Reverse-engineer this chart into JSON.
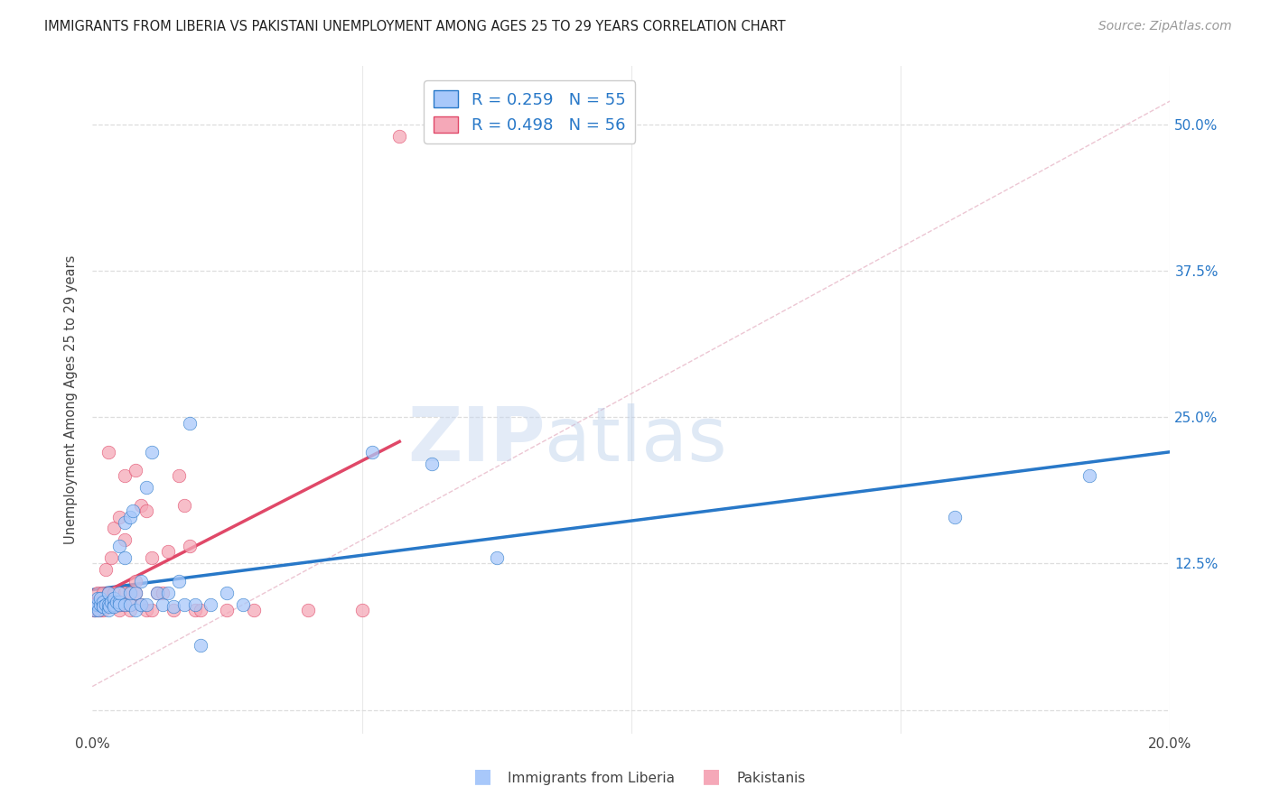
{
  "title": "IMMIGRANTS FROM LIBERIA VS PAKISTANI UNEMPLOYMENT AMONG AGES 25 TO 29 YEARS CORRELATION CHART",
  "source": "Source: ZipAtlas.com",
  "ylabel": "Unemployment Among Ages 25 to 29 years",
  "xlim": [
    0.0,
    0.2
  ],
  "ylim": [
    -0.02,
    0.55
  ],
  "xticks": [
    0.0,
    0.05,
    0.1,
    0.15,
    0.2
  ],
  "xticklabels": [
    "0.0%",
    "",
    "",
    "",
    "20.0%"
  ],
  "yticks": [
    0.0,
    0.125,
    0.25,
    0.375,
    0.5
  ],
  "yticklabels": [
    "",
    "12.5%",
    "25.0%",
    "37.5%",
    "50.0%"
  ],
  "liberia_R": 0.259,
  "liberia_N": 55,
  "pakistani_R": 0.498,
  "pakistani_N": 56,
  "liberia_color": "#a8c8fa",
  "pakistani_color": "#f5a8b8",
  "liberia_line_color": "#2878c8",
  "pakistani_line_color": "#e04868",
  "diagonal_color": "#e8b8c8",
  "watermark_color": "#c8d8f0",
  "liberia_x": [
    0.0005,
    0.0008,
    0.001,
    0.001,
    0.0012,
    0.0015,
    0.0015,
    0.002,
    0.002,
    0.002,
    0.0025,
    0.003,
    0.003,
    0.003,
    0.0032,
    0.0035,
    0.004,
    0.004,
    0.004,
    0.0045,
    0.005,
    0.005,
    0.005,
    0.005,
    0.006,
    0.006,
    0.006,
    0.007,
    0.007,
    0.007,
    0.0075,
    0.008,
    0.008,
    0.009,
    0.009,
    0.01,
    0.01,
    0.011,
    0.012,
    0.013,
    0.014,
    0.015,
    0.016,
    0.017,
    0.018,
    0.019,
    0.02,
    0.022,
    0.025,
    0.028,
    0.052,
    0.063,
    0.075,
    0.16,
    0.185
  ],
  "liberia_y": [
    0.085,
    0.09,
    0.09,
    0.095,
    0.085,
    0.09,
    0.095,
    0.088,
    0.092,
    0.088,
    0.09,
    0.085,
    0.09,
    0.1,
    0.088,
    0.092,
    0.09,
    0.095,
    0.088,
    0.092,
    0.14,
    0.092,
    0.09,
    0.1,
    0.16,
    0.09,
    0.13,
    0.09,
    0.1,
    0.165,
    0.17,
    0.1,
    0.085,
    0.11,
    0.09,
    0.19,
    0.09,
    0.22,
    0.1,
    0.09,
    0.1,
    0.088,
    0.11,
    0.09,
    0.245,
    0.09,
    0.055,
    0.09,
    0.1,
    0.09,
    0.22,
    0.21,
    0.13,
    0.165,
    0.2
  ],
  "pakistani_x": [
    0.0003,
    0.0005,
    0.0005,
    0.0008,
    0.001,
    0.001,
    0.001,
    0.0012,
    0.0015,
    0.002,
    0.002,
    0.002,
    0.002,
    0.0025,
    0.003,
    0.003,
    0.003,
    0.0035,
    0.004,
    0.004,
    0.004,
    0.0045,
    0.005,
    0.005,
    0.005,
    0.005,
    0.006,
    0.006,
    0.006,
    0.006,
    0.007,
    0.007,
    0.007,
    0.008,
    0.008,
    0.008,
    0.009,
    0.009,
    0.01,
    0.01,
    0.011,
    0.011,
    0.012,
    0.013,
    0.014,
    0.015,
    0.016,
    0.017,
    0.018,
    0.019,
    0.02,
    0.025,
    0.03,
    0.04,
    0.05,
    0.057
  ],
  "pakistani_y": [
    0.085,
    0.085,
    0.09,
    0.09,
    0.085,
    0.09,
    0.1,
    0.09,
    0.085,
    0.09,
    0.095,
    0.1,
    0.085,
    0.12,
    0.22,
    0.09,
    0.1,
    0.13,
    0.1,
    0.155,
    0.09,
    0.09,
    0.165,
    0.085,
    0.09,
    0.09,
    0.145,
    0.09,
    0.2,
    0.1,
    0.085,
    0.09,
    0.1,
    0.205,
    0.1,
    0.11,
    0.09,
    0.175,
    0.17,
    0.085,
    0.085,
    0.13,
    0.1,
    0.1,
    0.135,
    0.085,
    0.2,
    0.175,
    0.14,
    0.085,
    0.085,
    0.085,
    0.085,
    0.085,
    0.085,
    0.49
  ],
  "background_color": "#ffffff",
  "grid_color": "#dddddd",
  "title_fontsize": 10.5,
  "axis_label_fontsize": 10.5,
  "tick_fontsize": 11,
  "legend_fontsize": 13,
  "source_fontsize": 10
}
